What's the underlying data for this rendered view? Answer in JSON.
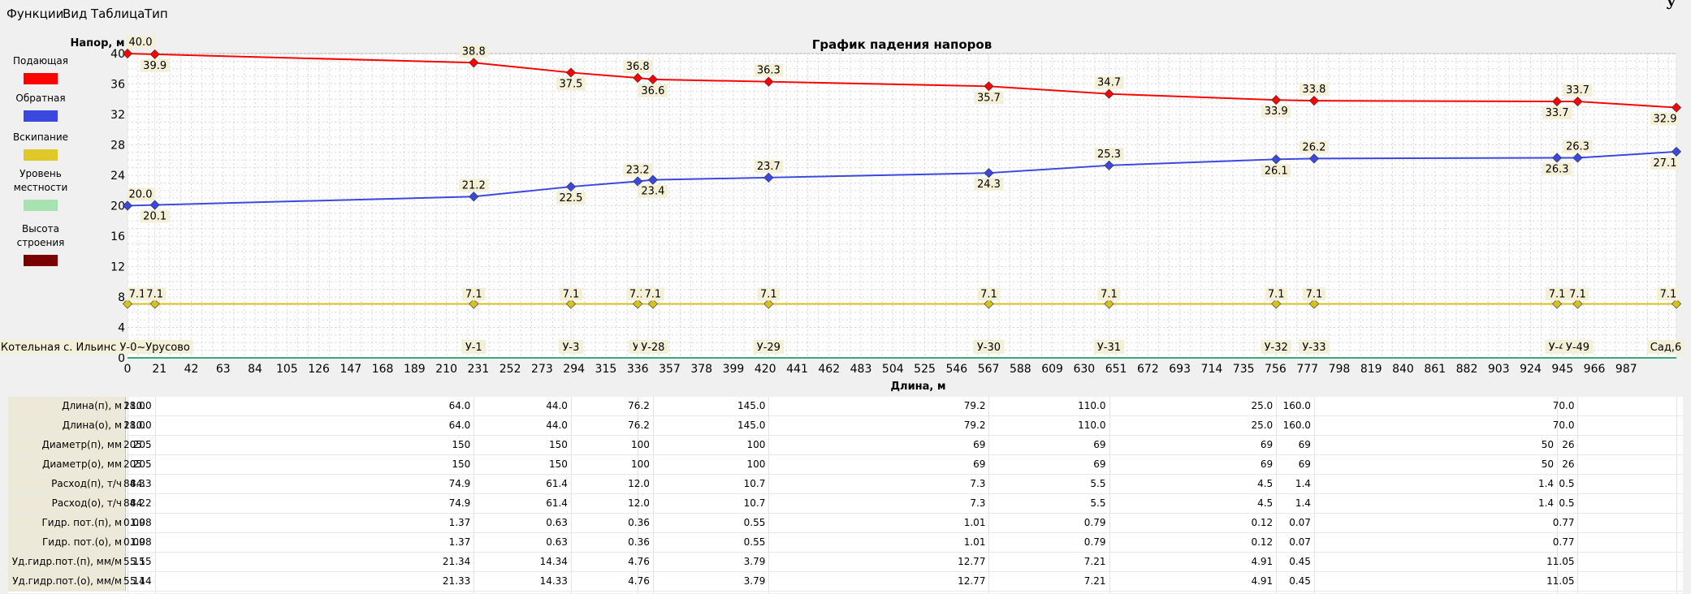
{
  "menu": [
    "Функции",
    "Вид",
    "Таблица",
    "Тип"
  ],
  "corner_glyph": "У",
  "legend": [
    {
      "label_lines": [
        "Подающая"
      ],
      "color": "#ff0000"
    },
    {
      "label_lines": [
        "Обратная"
      ],
      "color": "#3b48e0"
    },
    {
      "label_lines": [
        "Вскипание"
      ],
      "color": "#e0c828"
    },
    {
      "label_lines": [
        "Уровень",
        "местности"
      ],
      "color": "#a6e3b0"
    },
    {
      "label_lines": [
        "Высота",
        "строения"
      ],
      "color": "#7a0000"
    }
  ],
  "chart_data": {
    "type": "line",
    "title": "График падения напоров",
    "ylabel": "Напор, м",
    "xlabel": "Длина, м",
    "xlim": [
      0,
      1020
    ],
    "ylim": [
      0,
      40
    ],
    "x_ticks": [
      0,
      21,
      42,
      63,
      84,
      105,
      126,
      147,
      168,
      189,
      210,
      231,
      252,
      273,
      294,
      315,
      336,
      357,
      378,
      399,
      420,
      441,
      462,
      483,
      504,
      525,
      546,
      567,
      588,
      609,
      630,
      651,
      672,
      693,
      714,
      735,
      756,
      777,
      798,
      819,
      840,
      861,
      882,
      903,
      924,
      945,
      966,
      987
    ],
    "y_ticks": [
      0,
      4,
      8,
      12,
      16,
      20,
      24,
      28,
      32,
      36,
      40
    ],
    "grid": true,
    "nodes": [
      {
        "x": 0,
        "name": "Котельная с. Ильинское"
      },
      {
        "x": 18,
        "name": "У-0~Урусово"
      },
      {
        "x": 228,
        "name": "У-1"
      },
      {
        "x": 292,
        "name": "У-3"
      },
      {
        "x": 336,
        "name": "У-"
      },
      {
        "x": 346,
        "name": "У-28"
      },
      {
        "x": 422.2,
        "name": "У-29"
      },
      {
        "x": 567.2,
        "name": "У-30"
      },
      {
        "x": 646.4,
        "name": "У-31"
      },
      {
        "x": 756.4,
        "name": "У-32"
      },
      {
        "x": 781.4,
        "name": "У-33"
      },
      {
        "x": 941.4,
        "name": "У-4"
      },
      {
        "x": 955,
        "name": "У-49"
      },
      {
        "x": 1025,
        "name": "Сад,6"
      }
    ],
    "series": [
      {
        "name": "Подающая",
        "color": "#ff0000",
        "values": [
          40.0,
          39.9,
          38.8,
          37.5,
          36.8,
          36.6,
          36.3,
          35.7,
          34.7,
          33.9,
          33.8,
          33.7,
          33.7,
          32.9
        ],
        "labels": [
          "40.0",
          "39.9",
          "38.8",
          "37.5",
          "36.8",
          "36.6",
          "36.3",
          "35.7",
          "34.7",
          "33.9",
          "33.8",
          "33.7",
          "33.7",
          "32.9"
        ]
      },
      {
        "name": "Обратная",
        "color": "#3b48e0",
        "values": [
          20.0,
          20.1,
          21.2,
          22.5,
          23.2,
          23.4,
          23.7,
          24.3,
          25.3,
          26.1,
          26.2,
          26.3,
          26.3,
          27.1
        ],
        "labels": [
          "20.0",
          "20.1",
          "21.2",
          "22.5",
          "23.2",
          "23.4",
          "23.7",
          "24.3",
          "25.3",
          "26.1",
          "26.2",
          "26.3",
          "26.3",
          "27.1"
        ]
      },
      {
        "name": "Вскипание",
        "color": "#d6c21e",
        "values": [
          7.1,
          7.1,
          7.1,
          7.1,
          7.1,
          7.1,
          7.1,
          7.1,
          7.1,
          7.1,
          7.1,
          7.1,
          7.1,
          7.1
        ],
        "labels": [
          "7.1",
          "7.1",
          "7.1",
          "7.1",
          "7.1",
          "7.1",
          "7.1",
          "7.1",
          "7.1",
          "7.1",
          "7.1",
          "7.1",
          "7.1",
          "7.1"
        ]
      },
      {
        "name": "Уровень местности",
        "color": "#3aa87a",
        "values": [
          0,
          0,
          0,
          0,
          0,
          0,
          0,
          0,
          0,
          0,
          0,
          0,
          0,
          0
        ]
      }
    ]
  },
  "table": {
    "rows": [
      {
        "label": "Длина(п), м",
        "cells": [
          {
            "x": 0,
            "v": "18.0"
          },
          {
            "x": 18,
            "v": "210.0"
          },
          {
            "x": 228,
            "v": "64.0"
          },
          {
            "x": 292,
            "v": "44.0"
          },
          {
            "x": 346,
            "v": "76.2"
          },
          {
            "x": 422.2,
            "v": "145.0"
          },
          {
            "x": 567.2,
            "v": "79.2"
          },
          {
            "x": 646.4,
            "v": "110.0"
          },
          {
            "x": 756.4,
            "v": "25.0"
          },
          {
            "x": 781.4,
            "v": "160.0"
          },
          {
            "x": 955,
            "v": "70.0"
          }
        ]
      },
      {
        "label": "Длина(о), м",
        "cells": [
          {
            "x": 0,
            "v": "18.0"
          },
          {
            "x": 18,
            "v": "210.0"
          },
          {
            "x": 228,
            "v": "64.0"
          },
          {
            "x": 292,
            "v": "44.0"
          },
          {
            "x": 346,
            "v": "76.2"
          },
          {
            "x": 422.2,
            "v": "145.0"
          },
          {
            "x": 567.2,
            "v": "79.2"
          },
          {
            "x": 646.4,
            "v": "110.0"
          },
          {
            "x": 756.4,
            "v": "25.0"
          },
          {
            "x": 781.4,
            "v": "160.0"
          },
          {
            "x": 955,
            "v": "70.0"
          }
        ]
      },
      {
        "label": "Диаметр(п), мм",
        "cells": [
          {
            "x": 0,
            "v": "205"
          },
          {
            "x": 18,
            "v": "205"
          },
          {
            "x": 228,
            "v": "150"
          },
          {
            "x": 292,
            "v": "150"
          },
          {
            "x": 346,
            "v": "100"
          },
          {
            "x": 422.2,
            "v": "100"
          },
          {
            "x": 567.2,
            "v": "69"
          },
          {
            "x": 646.4,
            "v": "69"
          },
          {
            "x": 756.4,
            "v": "69"
          },
          {
            "x": 781.4,
            "v": "69"
          },
          {
            "x": 941.4,
            "v": "50"
          },
          {
            "x": 955,
            "v": "26"
          }
        ]
      },
      {
        "label": "Диаметр(о), мм",
        "cells": [
          {
            "x": 0,
            "v": "205"
          },
          {
            "x": 18,
            "v": "205"
          },
          {
            "x": 228,
            "v": "150"
          },
          {
            "x": 292,
            "v": "150"
          },
          {
            "x": 346,
            "v": "100"
          },
          {
            "x": 422.2,
            "v": "100"
          },
          {
            "x": 567.2,
            "v": "69"
          },
          {
            "x": 646.4,
            "v": "69"
          },
          {
            "x": 756.4,
            "v": "69"
          },
          {
            "x": 781.4,
            "v": "69"
          },
          {
            "x": 941.4,
            "v": "50"
          },
          {
            "x": 955,
            "v": "26"
          }
        ]
      },
      {
        "label": "Расход(п), т/ч",
        "cells": [
          {
            "x": 0,
            "v": "84.3"
          },
          {
            "x": 18,
            "v": "84.3"
          },
          {
            "x": 228,
            "v": "74.9"
          },
          {
            "x": 292,
            "v": "61.4"
          },
          {
            "x": 346,
            "v": "12.0"
          },
          {
            "x": 422.2,
            "v": "10.7"
          },
          {
            "x": 567.2,
            "v": "7.3"
          },
          {
            "x": 646.4,
            "v": "5.5"
          },
          {
            "x": 756.4,
            "v": "4.5"
          },
          {
            "x": 781.4,
            "v": "1.4"
          },
          {
            "x": 941.4,
            "v": "1.4"
          },
          {
            "x": 955,
            "v": "0.5"
          }
        ]
      },
      {
        "label": "Расход(о), т/ч",
        "cells": [
          {
            "x": 0,
            "v": "84.2"
          },
          {
            "x": 18,
            "v": "84.2"
          },
          {
            "x": 228,
            "v": "74.9"
          },
          {
            "x": 292,
            "v": "61.4"
          },
          {
            "x": 346,
            "v": "12.0"
          },
          {
            "x": 422.2,
            "v": "10.7"
          },
          {
            "x": 567.2,
            "v": "7.3"
          },
          {
            "x": 646.4,
            "v": "5.5"
          },
          {
            "x": 756.4,
            "v": "4.5"
          },
          {
            "x": 781.4,
            "v": "1.4"
          },
          {
            "x": 941.4,
            "v": "1.4"
          },
          {
            "x": 955,
            "v": "0.5"
          }
        ]
      },
      {
        "label": "Гидр. пот.(п), м",
        "cells": [
          {
            "x": 0,
            "v": "0.09"
          },
          {
            "x": 18,
            "v": "1.08"
          },
          {
            "x": 228,
            "v": "1.37"
          },
          {
            "x": 292,
            "v": "0.63"
          },
          {
            "x": 346,
            "v": "0.36"
          },
          {
            "x": 422.2,
            "v": "0.55"
          },
          {
            "x": 567.2,
            "v": "1.01"
          },
          {
            "x": 646.4,
            "v": "0.79"
          },
          {
            "x": 756.4,
            "v": "0.12"
          },
          {
            "x": 781.4,
            "v": "0.07"
          },
          {
            "x": 955,
            "v": "0.77"
          }
        ]
      },
      {
        "label": "Гидр. пот.(о), м",
        "cells": [
          {
            "x": 0,
            "v": "0.09"
          },
          {
            "x": 18,
            "v": "1.08"
          },
          {
            "x": 228,
            "v": "1.37"
          },
          {
            "x": 292,
            "v": "0.63"
          },
          {
            "x": 346,
            "v": "0.36"
          },
          {
            "x": 422.2,
            "v": "0.55"
          },
          {
            "x": 567.2,
            "v": "1.01"
          },
          {
            "x": 646.4,
            "v": "0.79"
          },
          {
            "x": 756.4,
            "v": "0.12"
          },
          {
            "x": 781.4,
            "v": "0.07"
          },
          {
            "x": 955,
            "v": "0.77"
          }
        ]
      },
      {
        "label": "Уд.гидр.пот.(п), мм/м",
        "cells": [
          {
            "x": 0,
            "v": "5.15"
          },
          {
            "x": 18,
            "v": "5.15"
          },
          {
            "x": 228,
            "v": "21.34"
          },
          {
            "x": 292,
            "v": "14.34"
          },
          {
            "x": 346,
            "v": "4.76"
          },
          {
            "x": 422.2,
            "v": "3.79"
          },
          {
            "x": 567.2,
            "v": "12.77"
          },
          {
            "x": 646.4,
            "v": "7.21"
          },
          {
            "x": 756.4,
            "v": "4.91"
          },
          {
            "x": 781.4,
            "v": "0.45"
          },
          {
            "x": 955,
            "v": "11.05"
          }
        ]
      },
      {
        "label": "Уд.гидр.пот.(о), мм/м",
        "cells": [
          {
            "x": 0,
            "v": "5.14"
          },
          {
            "x": 18,
            "v": "5.14"
          },
          {
            "x": 228,
            "v": "21.33"
          },
          {
            "x": 292,
            "v": "14.33"
          },
          {
            "x": 346,
            "v": "4.76"
          },
          {
            "x": 422.2,
            "v": "3.79"
          },
          {
            "x": 567.2,
            "v": "12.77"
          },
          {
            "x": 646.4,
            "v": "7.21"
          },
          {
            "x": 756.4,
            "v": "4.91"
          },
          {
            "x": 781.4,
            "v": "0.45"
          },
          {
            "x": 955,
            "v": "11.05"
          }
        ]
      }
    ]
  }
}
